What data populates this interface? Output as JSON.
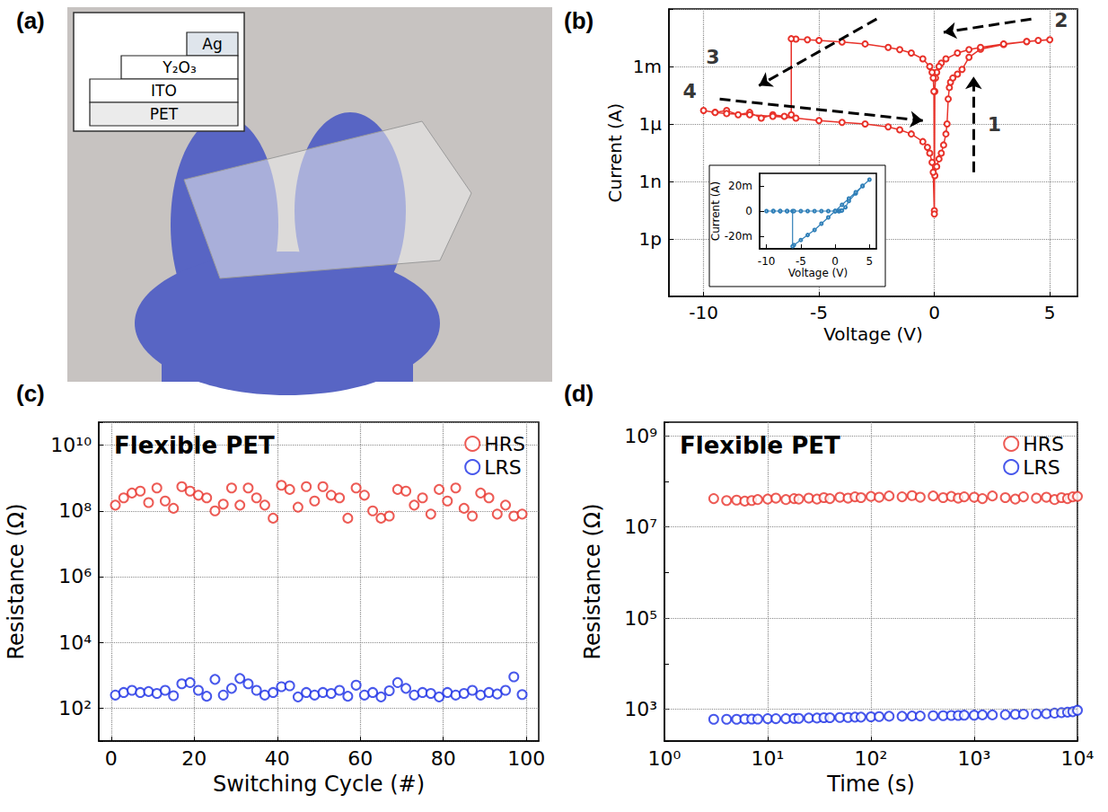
{
  "panel_labels": [
    "(a)",
    "(b)",
    "(c)",
    "(d)"
  ],
  "photo": {
    "layers": [
      "Ag",
      "Y₂O₃",
      "ITO",
      "PET"
    ]
  },
  "chart_data": [
    {
      "type": "line",
      "x_label": "Voltage (V)",
      "y_label": "Current (A)",
      "x": [
        0.02,
        0.1,
        0.2,
        0.3,
        0.4,
        0.5,
        0.55,
        0.6,
        0.65,
        0.7,
        0.8,
        1.0,
        1.2,
        1.5,
        2,
        3,
        4,
        5,
        4.5,
        4,
        3,
        2,
        1.5,
        1,
        0.5,
        0.3,
        0.2,
        0.1,
        0.05,
        0.02,
        0,
        -0.02,
        -0.05,
        -0.1,
        -0.2,
        -0.5,
        -1,
        -1.5,
        -2,
        -3,
        -4,
        -5,
        -5.5,
        -6,
        -6.2,
        -6.2,
        -6.5,
        -7,
        -7.5,
        -8,
        -8.5,
        -9,
        -9.5,
        -10,
        -9.5,
        -9,
        -8,
        -7,
        -6,
        -5,
        -4,
        -3,
        -2,
        -1.5,
        -1,
        -0.5,
        -0.3,
        -0.2,
        -0.1,
        -0.05,
        0
      ],
      "values": [
        2e-09,
        6e-09,
        1.5e-08,
        3e-08,
        8e-08,
        3e-07,
        1e-06,
        2e-05,
        8e-05,
        0.00015,
        0.00025,
        0.0004,
        0.0007,
        0.003,
        0.008,
        0.014,
        0.02,
        0.025,
        0.023,
        0.02,
        0.015,
        0.01,
        0.0075,
        0.005,
        0.0025,
        0.0015,
        0.001,
        0.0005,
        0.00025,
        5e-05,
        3e-11,
        5e-05,
        0.00025,
        0.0005,
        0.001,
        0.0025,
        0.005,
        0.0075,
        0.01,
        0.015,
        0.019,
        0.023,
        0.025,
        0.027,
        0.028,
        3e-06,
        2.5e-06,
        3e-06,
        2e-06,
        4e-06,
        3e-06,
        5e-06,
        4e-06,
        5e-06,
        4e-06,
        3.5e-06,
        3e-06,
        2.5e-06,
        2e-06,
        1.5e-06,
        1.2e-06,
        1e-06,
        7e-07,
        5e-07,
        3e-07,
        1.2e-07,
        6e-08,
        3e-08,
        1e-08,
        3e-09,
        2e-11
      ],
      "color": "#e8322a",
      "marker": "open_circle",
      "xlim": [
        -11.5,
        6.2
      ],
      "xticks": [
        -10,
        -5,
        0,
        5
      ],
      "ylim": [
        1e-15,
        1
      ],
      "yticks": [
        {
          "value": 1e-12,
          "label": "1p"
        },
        {
          "value": 1e-09,
          "label": "1n"
        },
        {
          "value": 1e-06,
          "label": "1μ"
        },
        {
          "value": 0.001,
          "label": "1m"
        }
      ],
      "log": "y",
      "grid": true,
      "annotations": [
        {
          "text": "1",
          "x": 2.6,
          "y": 1e-06,
          "arrow_from": [
            1.7,
            3e-09
          ],
          "arrow_to": [
            1.7,
            0.0003
          ]
        },
        {
          "text": "2",
          "x": 5.5,
          "y": 0.25,
          "arrow_from": [
            4.2,
            0.3
          ],
          "arrow_to": [
            0.4,
            0.06
          ]
        },
        {
          "text": "3",
          "x": -9.6,
          "y": 0.003,
          "arrow_from": [
            -2.5,
            0.3
          ],
          "arrow_to": [
            -7.6,
            0.0001
          ]
        },
        {
          "text": "4",
          "x": -10.6,
          "y": 5e-05,
          "arrow_from": [
            -9.3,
            2e-05
          ],
          "arrow_to": [
            -0.5,
            1.5e-06
          ]
        }
      ]
    },
    {
      "type": "line",
      "x_label": "Voltage (V)",
      "y_label": "Current (A)",
      "x": [
        0,
        0.5,
        0.6,
        0.8,
        1,
        1.5,
        2,
        3,
        4,
        5,
        4,
        3,
        2,
        1,
        0,
        -1,
        -2,
        -3,
        -4,
        -5,
        -6,
        -6.2,
        -6.2,
        -7,
        -8,
        -9,
        -10,
        -9,
        -8,
        -7,
        -6,
        -5,
        -4,
        -3,
        -2,
        -1,
        0
      ],
      "values": [
        0,
        0,
        2e-05,
        0.0003,
        0.0005,
        0.003,
        0.008,
        0.014,
        0.02,
        0.025,
        0.02,
        0.015,
        0.01,
        0.005,
        0,
        -0.005,
        -0.01,
        -0.015,
        -0.019,
        -0.023,
        -0.027,
        -0.028,
        -3e-06,
        -3e-06,
        -4e-06,
        -5e-06,
        -5e-06,
        -3.5e-06,
        -3e-06,
        -2.5e-06,
        -2e-06,
        -1.5e-06,
        -1.2e-06,
        -1e-06,
        -7e-07,
        -3e-07,
        0
      ],
      "color": "#2f7fb8",
      "marker": "open_circle",
      "xlim": [
        -11,
        6
      ],
      "xticks": [
        -10,
        -5,
        0,
        5
      ],
      "ylim": [
        -0.03,
        0.03
      ],
      "yticks": [
        {
          "value": -0.02,
          "label": "-20m"
        },
        0,
        {
          "value": 0.02,
          "label": "20m"
        }
      ],
      "grid": false
    },
    {
      "type": "scatter",
      "x_label": "Switching Cycle (#)",
      "y_label": "Resistance (Ω)",
      "annotations": [
        {
          "text": "Flexible PET"
        }
      ],
      "x": [
        1,
        3,
        5,
        7,
        9,
        11,
        13,
        15,
        17,
        19,
        21,
        23,
        25,
        27,
        29,
        31,
        33,
        35,
        37,
        39,
        41,
        43,
        45,
        47,
        49,
        51,
        53,
        55,
        57,
        59,
        61,
        63,
        65,
        67,
        69,
        71,
        73,
        75,
        77,
        79,
        81,
        83,
        85,
        87,
        89,
        91,
        93,
        95,
        97,
        99
      ],
      "series": [
        {
          "name": "HRS",
          "color": "#e8322a",
          "marker": "open_circle",
          "values": [
            150000000.0,
            250000000.0,
            350000000.0,
            400000000.0,
            180000000.0,
            500000000.0,
            200000000.0,
            120000000.0,
            550000000.0,
            400000000.0,
            300000000.0,
            250000000.0,
            100000000.0,
            160000000.0,
            500000000.0,
            150000000.0,
            500000000.0,
            250000000.0,
            150000000.0,
            60000000.0,
            600000000.0,
            450000000.0,
            130000000.0,
            550000000.0,
            200000000.0,
            550000000.0,
            300000000.0,
            250000000.0,
            60000000.0,
            500000000.0,
            300000000.0,
            100000000.0,
            60000000.0,
            70000000.0,
            450000000.0,
            400000000.0,
            150000000.0,
            250000000.0,
            80000000.0,
            450000000.0,
            200000000.0,
            500000000.0,
            120000000.0,
            70000000.0,
            350000000.0,
            250000000.0,
            80000000.0,
            150000000.0,
            70000000.0,
            80000000.0
          ]
        },
        {
          "name": "LRS",
          "color": "#1a2ee6",
          "marker": "open_circle",
          "values": [
            250,
            300,
            350,
            300,
            320,
            280,
            350,
            240,
            550,
            600,
            350,
            230,
            750,
            250,
            400,
            800,
            550,
            350,
            250,
            300,
            450,
            480,
            220,
            300,
            250,
            300,
            280,
            350,
            230,
            500,
            250,
            300,
            220,
            340,
            600,
            400,
            250,
            300,
            280,
            220,
            300,
            250,
            280,
            350,
            250,
            300,
            270,
            350,
            900,
            260
          ]
        }
      ],
      "xlim": [
        -3,
        103
      ],
      "xticks": [
        0,
        20,
        40,
        60,
        80,
        100
      ],
      "ylim": [
        10,
        50000000000.0
      ],
      "yticks": [
        {
          "value": 100.0,
          "label": "10²"
        },
        {
          "value": 10000.0,
          "label": "10⁴"
        },
        {
          "value": 1000000.0,
          "label": "10⁶"
        },
        {
          "value": 100000000.0,
          "label": "10⁸"
        },
        {
          "value": 10000000000.0,
          "label": "10¹⁰"
        }
      ],
      "log": "y",
      "grid": true,
      "legend": "top-right"
    },
    {
      "type": "scatter",
      "x_label": "Time (s)",
      "y_label": "Resistance (Ω)",
      "annotations": [
        {
          "text": "Flexible PET"
        }
      ],
      "x": [
        3,
        4,
        5,
        6,
        7,
        8,
        10,
        12,
        15,
        18,
        20,
        25,
        30,
        35,
        40,
        50,
        60,
        70,
        80,
        100,
        120,
        150,
        200,
        250,
        300,
        400,
        500,
        600,
        700,
        800,
        1000,
        1200,
        1500,
        2000,
        2500,
        3000,
        4000,
        5000,
        6000,
        7000,
        8000,
        9000,
        10000
      ],
      "series": [
        {
          "name": "HRS",
          "color": "#e8322a",
          "marker": "open_circle",
          "values": [
            42000000.0,
            38000000.0,
            39000000.0,
            37000000.0,
            38000000.0,
            40000000.0,
            41000000.0,
            43000000.0,
            40000000.0,
            42000000.0,
            41000000.0,
            43000000.0,
            41000000.0,
            44000000.0,
            42000000.0,
            45000000.0,
            43000000.0,
            46000000.0,
            44000000.0,
            47000000.0,
            45000000.0,
            48000000.0,
            46000000.0,
            49000000.0,
            45000000.0,
            48000000.0,
            44000000.0,
            47000000.0,
            43000000.0,
            46000000.0,
            45000000.0,
            42000000.0,
            48000000.0,
            44000000.0,
            41000000.0,
            46000000.0,
            43000000.0,
            45000000.0,
            40000000.0,
            44000000.0,
            42000000.0,
            46000000.0,
            47000000.0
          ]
        },
        {
          "name": "LRS",
          "color": "#1a2ee6",
          "marker": "open_circle",
          "values": [
            600,
            600,
            600,
            610,
            610,
            610,
            620,
            620,
            620,
            630,
            630,
            640,
            640,
            650,
            650,
            660,
            660,
            670,
            670,
            680,
            690,
            700,
            700,
            710,
            710,
            720,
            720,
            730,
            730,
            740,
            740,
            750,
            750,
            760,
            770,
            780,
            790,
            800,
            820,
            840,
            860,
            880,
            950
          ]
        }
      ],
      "xlim": [
        1,
        10000
      ],
      "xticks": [
        {
          "value": 1,
          "label": "10⁰"
        },
        {
          "value": 10,
          "label": "10¹"
        },
        {
          "value": 100,
          "label": "10²"
        },
        {
          "value": 1000,
          "label": "10³"
        },
        {
          "value": 10000,
          "label": "10⁴"
        }
      ],
      "ylim": [
        200,
        2000000000.0
      ],
      "yticks": [
        {
          "value": 1000.0,
          "label": "10³"
        },
        {
          "value": 100000.0,
          "label": "10⁵"
        },
        {
          "value": 10000000.0,
          "label": "10⁷"
        },
        {
          "value": 1000000000.0,
          "label": "10⁹"
        }
      ],
      "log": true,
      "grid": true,
      "legend": "top-right"
    }
  ]
}
